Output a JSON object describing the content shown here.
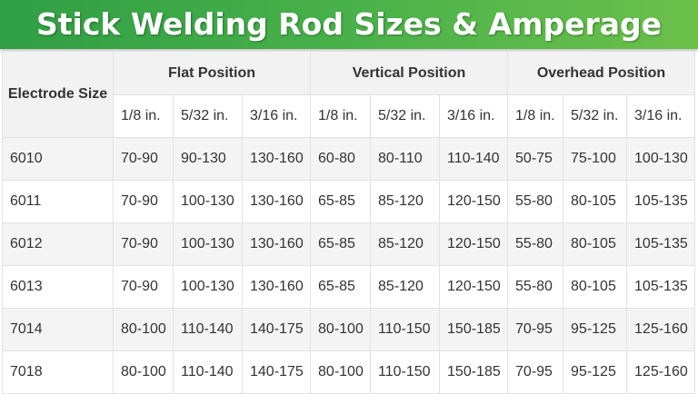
{
  "title": "Stick Welding Rod Sizes & Amperage Chart",
  "colors": {
    "title_bar": "#3fa84a",
    "header_bg": "#f2f2f2",
    "stripe_bg": "#f4f4f4"
  },
  "table": {
    "corner_label": "Electrode Size",
    "groups": [
      "Flat Position",
      "Vertical Position",
      "Overhead Position"
    ],
    "sizes": [
      "1/8 in.",
      "5/32 in.",
      "3/16 in.",
      "1/8 in.",
      "5/32 in.",
      "3/16 in.",
      "1/8 in.",
      "5/32 in.",
      "3/16 in."
    ],
    "rows": [
      [
        "6010",
        "70-90",
        "90-130",
        "130-160",
        "60-80",
        "80-110",
        "110-140",
        "50-75",
        "75-100",
        "100-130"
      ],
      [
        "6011",
        "70-90",
        "100-130",
        "130-160",
        "65-85",
        "85-120",
        "120-150",
        "55-80",
        "80-105",
        "105-135"
      ],
      [
        "6012",
        "70-90",
        "100-130",
        "130-160",
        "65-85",
        "85-120",
        "120-150",
        "55-80",
        "80-105",
        "105-135"
      ],
      [
        "6013",
        "70-90",
        "100-130",
        "130-160",
        "65-85",
        "85-120",
        "120-150",
        "55-80",
        "80-105",
        "105-135"
      ],
      [
        "7014",
        "80-100",
        "110-140",
        "140-175",
        "80-100",
        "110-150",
        "150-185",
        "70-95",
        "95-125",
        "125-160"
      ],
      [
        "7018",
        "80-100",
        "110-140",
        "140-175",
        "80-100",
        "110-150",
        "150-185",
        "70-95",
        "95-125",
        "125-160"
      ]
    ]
  }
}
